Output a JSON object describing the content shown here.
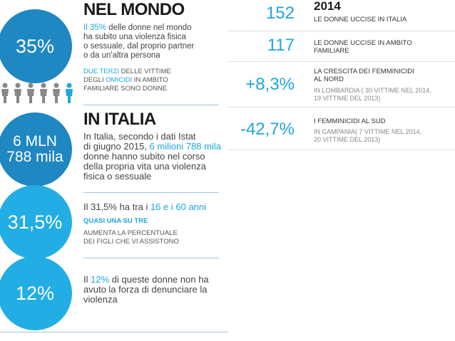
{
  "mondo": {
    "title": "NEL MONDO",
    "circle_value": "35%",
    "line1_hl": "Il 35%",
    "line1_rest": " delle donne nel mondo",
    "line2": "ha subito una violenza fisica",
    "line3": "o sessuale, dal proprio partner",
    "line4": "o da un'altra persona",
    "caps1_hl": "DUE TERZI",
    "caps1_rest": " DELLE VITTIME",
    "caps2_a": "DEGLI ",
    "caps2_hl": "OMICIDI",
    "caps2_rest": " IN AMBITO",
    "caps3": "FAMILIARE SONO DONNE",
    "people_icon": "person-icon"
  },
  "italia": {
    "title": "IN ITALIA",
    "circle_line1": "6 MLN",
    "circle_line2": "788 mila",
    "line1": "In Italia, secondo i dati Istat",
    "line2_a": "di giugno 2015, ",
    "line2_hl": "6 milioni 788 mila",
    "line3": "donne hanno subito nel corso",
    "line4": "della propria vita una violenza",
    "line5": "fisica o sessuale"
  },
  "block3": {
    "circle_value": "31,5%",
    "line1_a": "Il 31,5% ha tra i ",
    "line1_hl": "16 e i 60 anni",
    "caps_hl": "QUASI UNA SU TRE",
    "caps1": "AUMENTA LA PERCENTUALE",
    "caps2": "DEI FIGLI CHE VI ASSISTONO"
  },
  "block4": {
    "circle_value": "12%",
    "line1_a": "Il ",
    "line1_hl": "12%",
    "line1_rest": " di queste donne non ha",
    "line2": "avuto la forza di denunciare la",
    "line3": "violenza"
  },
  "stats": {
    "year": "2014",
    "items": [
      {
        "value": "152",
        "head1": "LE DONNE UCCISE IN ITALIA"
      },
      {
        "value": "117",
        "head1": "LE DONNE UCCISE IN AMBITO",
        "head2": "FAMILIARE"
      },
      {
        "value": "+8,3%",
        "head1": "LA CRESCITA DEI FEMMINICIDI",
        "head2": "AL NORD",
        "sub1": "IN LOMBARDIA ( 30 VITTIME NEL 2014,",
        "sub2": "19 VITTIME DEL 2013)"
      },
      {
        "value": "-42,7%",
        "head1": "I FEMMINICIDI AL SUD",
        "sub1": "IN CAMPANIA( 7 VITTIME NEL 2014,",
        "sub2": "20 VITTIME DEL 2013)"
      }
    ]
  },
  "colors": {
    "dark_blue": "#1f87c2",
    "light_blue": "#22aee4",
    "accent": "#1ea6df"
  }
}
